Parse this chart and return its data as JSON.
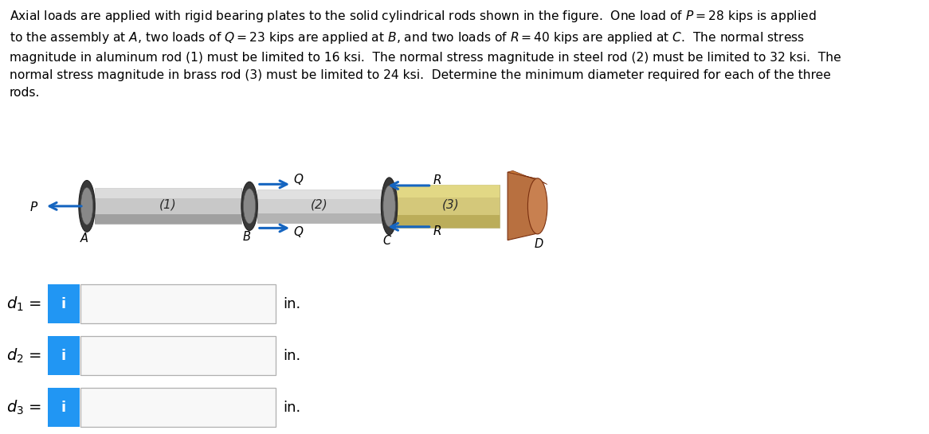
{
  "bg_color": "#ffffff",
  "text_color": "#000000",
  "info_btn_color": "#2196F3",
  "arrow_color": "#1565C0",
  "rod1_color_light": "#c8c8c8",
  "rod1_color_dark": "#707070",
  "rod2_color_light": "#d0d0d0",
  "rod2_color_dark": "#909090",
  "rod3_color_light": "#d4c87a",
  "rod3_color_dark": "#a89840",
  "plate_color": "#b87040",
  "plate_color2": "#c88050",
  "bearing_color_outer": "#404040",
  "bearing_color_inner": "#888888",
  "point_labels": [
    "A",
    "B",
    "C",
    "D"
  ],
  "rod_labels": [
    "(1)",
    "(2)",
    "(3)"
  ],
  "d_labels": [
    "$d_1$ =",
    "$d_2$ =",
    "$d_3$ ="
  ],
  "in_label": "in.",
  "paragraph_lines": [
    "Axial loads are applied with rigid bearing plates to the solid cylindrical rods shown in the figure.  One load of $P = 28$ kips is applied",
    "to the assembly at $A$, two loads of $Q = 23$ kips are applied at $B$, and two loads of $R = 40$ kips are applied at $C$.  The normal stress",
    "magnitude in aluminum rod (1) must be limited to 16 ksi.  The normal stress magnitude in steel rod (2) must be limited to 32 ksi.  The",
    "normal stress magnitude in brass rod (3) must be limited to 24 ksi.  Determine the minimum diameter required for each of the three",
    "rods."
  ]
}
